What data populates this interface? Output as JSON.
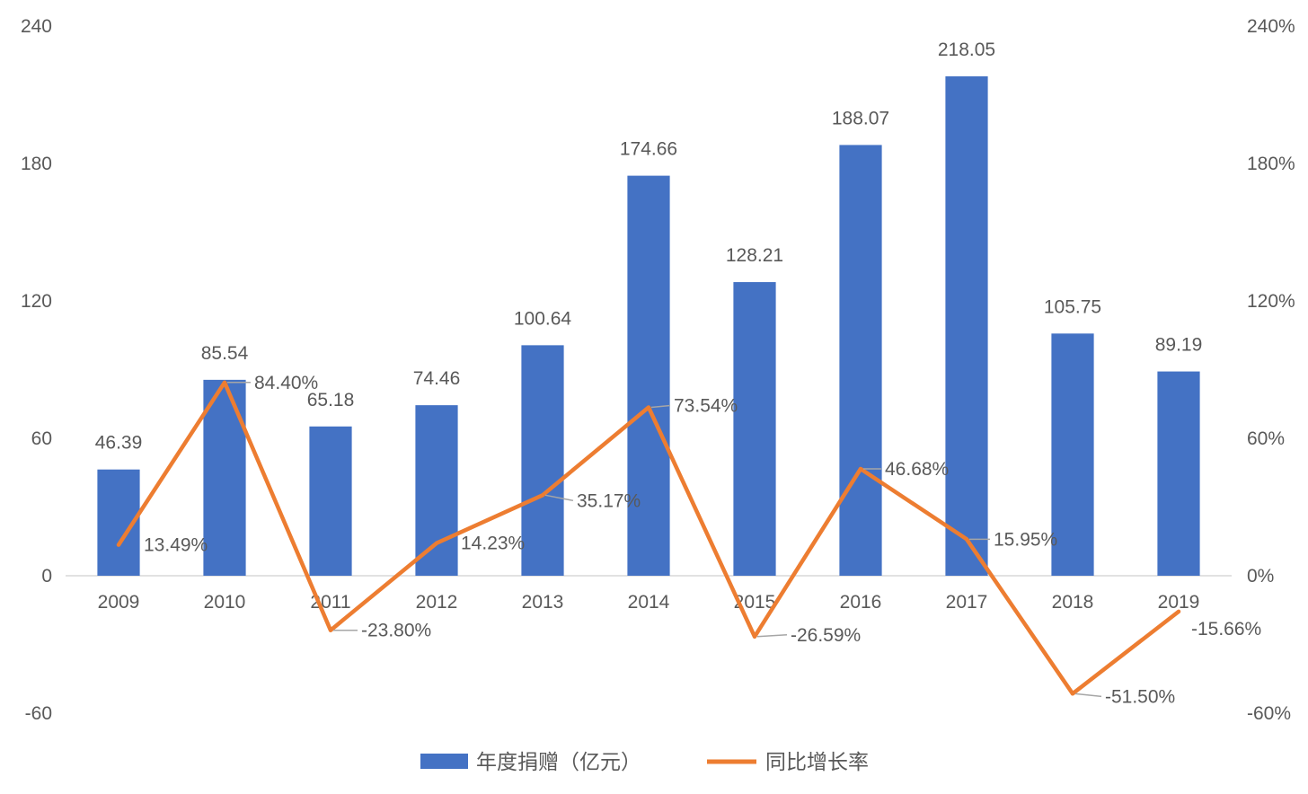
{
  "chart_data": {
    "type": "bar",
    "categories": [
      "2009",
      "2010",
      "2011",
      "2012",
      "2013",
      "2014",
      "2015",
      "2016",
      "2017",
      "2018",
      "2019"
    ],
    "series": [
      {
        "name": "年度捐赠（亿元）",
        "type": "bar",
        "axis": "left",
        "color": "#4472C4",
        "values": [
          46.39,
          85.54,
          65.18,
          74.46,
          100.64,
          174.66,
          128.21,
          188.07,
          218.05,
          105.75,
          89.19
        ],
        "data_labels": [
          "46.39",
          "85.54",
          "65.18",
          "74.46",
          "100.64",
          "174.66",
          "128.21",
          "188.07",
          "218.05",
          "105.75",
          "89.19"
        ]
      },
      {
        "name": "同比增长率",
        "type": "line",
        "axis": "right",
        "color": "#ED7D31",
        "values": [
          13.49,
          84.4,
          -23.8,
          14.23,
          35.17,
          73.54,
          -26.59,
          46.68,
          15.95,
          -51.5,
          -15.66
        ],
        "data_labels": [
          "13.49%",
          "84.40%",
          "-23.80%",
          "14.23%",
          "35.17%",
          "73.54%",
          "-26.59%",
          "46.68%",
          "15.95%",
          "-51.50%",
          "-15.66%"
        ]
      }
    ],
    "y_left": {
      "lim": [
        -60,
        240
      ],
      "ticks": [
        240,
        180,
        120,
        60,
        0,
        -60
      ],
      "tick_labels": [
        "240",
        "180",
        "120",
        "60",
        "0",
        "-60"
      ]
    },
    "y_right": {
      "lim": [
        -60,
        240
      ],
      "ticks": [
        240,
        180,
        120,
        60,
        0,
        -60
      ],
      "tick_labels": [
        "240%",
        "180%",
        "120%",
        "60%",
        "0%",
        "-60%"
      ]
    },
    "grid": false,
    "legend": "bottom-center"
  },
  "colors": {
    "text": "#595959",
    "axis": "#D9D9D9",
    "leader": "#A6A6A6",
    "background": "#FFFFFF"
  }
}
